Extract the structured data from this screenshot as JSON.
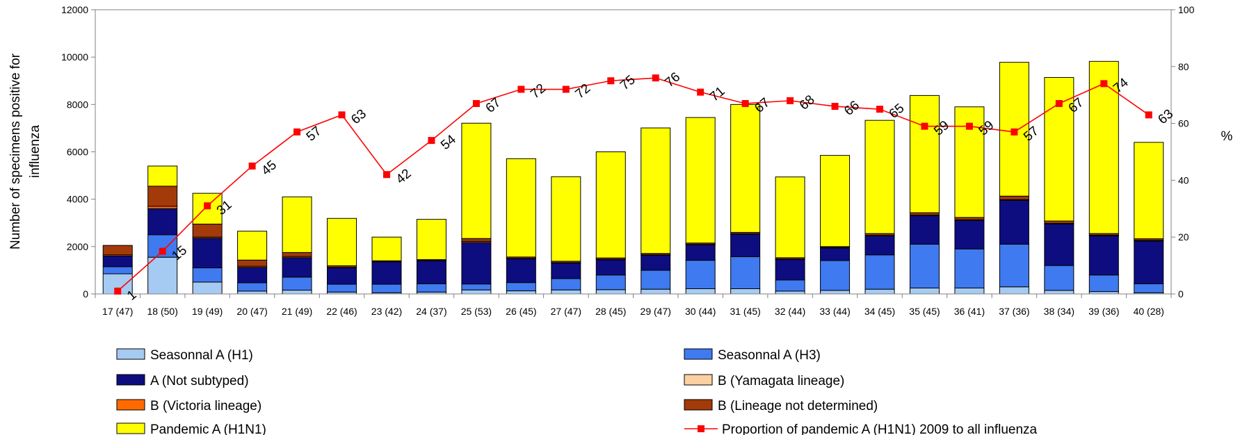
{
  "chart_data": {
    "type": "bar",
    "stacked": true,
    "categories": [
      "17 (47)",
      "18 (50)",
      "19 (49)",
      "20 (47)",
      "21 (49)",
      "22 (46)",
      "23 (42)",
      "24 (37)",
      "25 (53)",
      "26 (45)",
      "27 (47)",
      "28 (45)",
      "29 (47)",
      "30 (44)",
      "31 (45)",
      "32 (44)",
      "33 (44)",
      "34 (45)",
      "35 (45)",
      "36 (41)",
      "37 (36)",
      "38 (34)",
      "39 (36)",
      "40 (28)"
    ],
    "ylabel": "Number of specimens positive for influenza",
    "y2label": "%",
    "ylim": [
      0,
      12000
    ],
    "y2lim": [
      0,
      100
    ],
    "yticks": [
      0,
      2000,
      4000,
      6000,
      8000,
      10000,
      12000
    ],
    "y2ticks": [
      0,
      20,
      40,
      60,
      80,
      100
    ],
    "series": [
      {
        "name": "Seasonnal A (H1)",
        "color": "#a6cbf2",
        "values": [
          850,
          1550,
          500,
          120,
          160,
          80,
          50,
          80,
          170,
          130,
          170,
          180,
          200,
          220,
          220,
          120,
          150,
          200,
          250,
          250,
          300,
          150,
          100,
          50
        ]
      },
      {
        "name": "Seasonnal A (H3)",
        "color": "#3f7af0",
        "values": [
          300,
          950,
          600,
          350,
          550,
          330,
          360,
          350,
          250,
          350,
          480,
          620,
          800,
          1200,
          1350,
          470,
          1260,
          1450,
          1850,
          1650,
          1800,
          1050,
          700,
          380
        ]
      },
      {
        "name": "A (Not subtyped)",
        "color": "#0d0d80",
        "values": [
          450,
          1100,
          1250,
          650,
          820,
          690,
          940,
          970,
          1750,
          1000,
          650,
          640,
          630,
          650,
          950,
          860,
          530,
          800,
          1200,
          1200,
          1850,
          1750,
          1650,
          1800
        ]
      },
      {
        "name": "B (Yamagata lineage)",
        "color": "#fcd0a1",
        "values": [
          0,
          0,
          0,
          0,
          0,
          0,
          0,
          0,
          0,
          0,
          0,
          0,
          0,
          0,
          0,
          0,
          0,
          0,
          0,
          0,
          0,
          0,
          0,
          0
        ]
      },
      {
        "name": "B (Victoria lineage)",
        "color": "#ff6a00",
        "values": [
          50,
          100,
          50,
          50,
          50,
          20,
          10,
          10,
          50,
          20,
          20,
          20,
          20,
          20,
          20,
          20,
          20,
          20,
          30,
          30,
          30,
          30,
          30,
          30
        ]
      },
      {
        "name": "B (Lineage not determined)",
        "color": "#a33a0a",
        "values": [
          400,
          850,
          550,
          260,
          170,
          70,
          40,
          40,
          120,
          60,
          60,
          60,
          60,
          60,
          60,
          60,
          40,
          80,
          100,
          100,
          150,
          100,
          70,
          70
        ]
      },
      {
        "name": "Pandemic A (H1N1)",
        "color": "#ffff00",
        "values": [
          0,
          850,
          1300,
          1220,
          2350,
          2000,
          1000,
          1700,
          4870,
          4150,
          3570,
          4480,
          5300,
          5300,
          5400,
          3410,
          3850,
          4780,
          4950,
          4670,
          5650,
          6060,
          7270,
          4070
        ]
      }
    ],
    "line": {
      "name": "Proportion of pandemic A (H1N1) 2009 to all influenza",
      "color": "#ff0000",
      "axis": "right",
      "values": [
        1,
        15,
        31,
        45,
        57,
        63,
        42,
        54,
        67,
        72,
        72,
        75,
        76,
        71,
        67,
        68,
        66,
        65,
        59,
        59,
        57,
        67,
        74,
        63
      ],
      "labels": [
        "1",
        "15",
        "31",
        "45",
        "57",
        "63",
        "42",
        "54",
        "67",
        "72",
        "72",
        "75",
        "76",
        "71",
        "67",
        "68",
        "66",
        "65",
        "59",
        "59",
        "57",
        "67",
        "74",
        "63"
      ]
    },
    "legend_position": "bottom"
  }
}
